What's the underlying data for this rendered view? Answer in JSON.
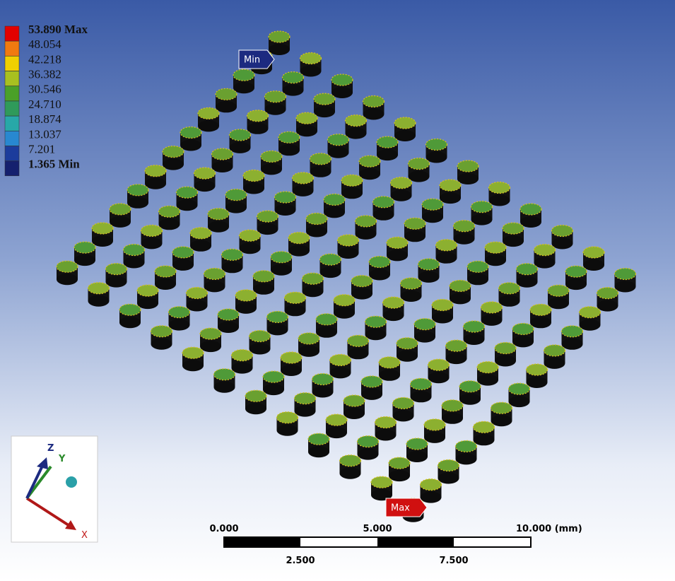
{
  "legend": {
    "labels": [
      "53.890 Max",
      "48.054",
      "42.218",
      "36.382",
      "30.546",
      "24.710",
      "18.874",
      "13.037",
      "7.201",
      "1.365 Min"
    ],
    "colors": [
      "#e30000",
      "#f07a10",
      "#f0d000",
      "#a8c020",
      "#4aa028",
      "#2f9a5a",
      "#28a8a8",
      "#2888d0",
      "#1c3c9c",
      "#15206e"
    ]
  },
  "probes": {
    "min": "Min",
    "max": "Max"
  },
  "triad": {
    "z": "Z",
    "y": "Y",
    "x": "X"
  },
  "scale_bar": {
    "top_labels": [
      "0.000",
      "5.000",
      "10.000 (mm)"
    ],
    "bottom_labels": [
      "2.500",
      "7.500"
    ]
  }
}
